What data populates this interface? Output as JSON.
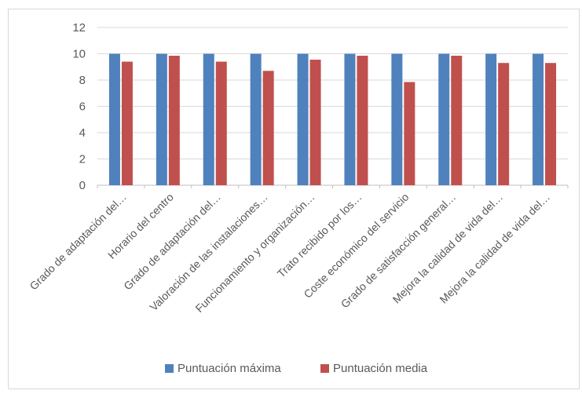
{
  "chart_data": {
    "type": "bar",
    "categories": [
      "Grado de adaptación del…",
      "Horario del centro",
      "Grado de adaptación del…",
      "Valoración de las instalaciones…",
      "Funcionamiento y organización…",
      "Trato recibido por los…",
      "Coste económico del servicio",
      "Grado de satisfacción general…",
      "Mejora la calidad de vida del…",
      "Mejora la calidad de vida del…"
    ],
    "series": [
      {
        "name": "Puntuación máxima",
        "color": "#4f81bd",
        "values": [
          10,
          10,
          10,
          10,
          10,
          10,
          10,
          10,
          10,
          10
        ]
      },
      {
        "name": "Puntuación media",
        "color": "#c0504d",
        "values": [
          9.4,
          9.85,
          9.4,
          8.7,
          9.55,
          9.85,
          7.85,
          9.85,
          9.3,
          9.3
        ]
      }
    ],
    "ylim": [
      0,
      12
    ],
    "yticks": [
      "0",
      "2",
      "4",
      "6",
      "8",
      "10",
      "12"
    ],
    "grid": true,
    "legend": "bottom",
    "title": "",
    "xlabel": "",
    "ylabel": ""
  }
}
